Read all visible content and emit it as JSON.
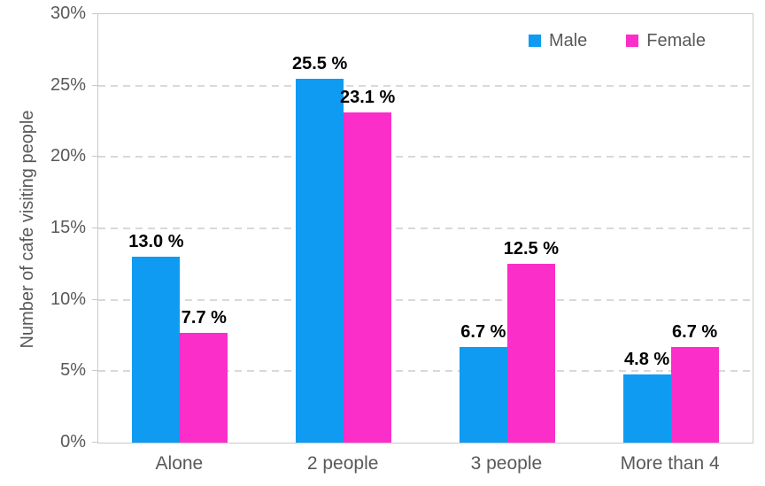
{
  "chart_data": {
    "type": "bar",
    "title": "",
    "xlabel": "",
    "ylabel": "Number of cafe visiting people",
    "ylim": [
      0,
      30
    ],
    "grid": "horizontal dashed lines at 5% intervals",
    "legend_position": "top-right inside plot area",
    "categories": [
      "Alone",
      "2 people",
      "3 people",
      "More than 4"
    ],
    "yticks": [
      {
        "value": 0,
        "label": "0%"
      },
      {
        "value": 5,
        "label": "5%"
      },
      {
        "value": 10,
        "label": "10%"
      },
      {
        "value": 15,
        "label": "15%"
      },
      {
        "value": 20,
        "label": "20%"
      },
      {
        "value": 25,
        "label": "25%"
      },
      {
        "value": 30,
        "label": "30%"
      }
    ],
    "series": [
      {
        "name": "Male",
        "color": "#0f9bf2",
        "values": [
          13.0,
          25.5,
          6.7,
          4.8
        ],
        "labels": [
          "13.0 %",
          "25.5 %",
          "6.7 %",
          "4.8 %"
        ]
      },
      {
        "name": "Female",
        "color": "#fb2ec9",
        "values": [
          7.7,
          23.1,
          12.5,
          6.7
        ],
        "labels": [
          "7.7 %",
          "23.1 %",
          "12.5 %",
          "6.7 %"
        ]
      }
    ],
    "style": {
      "text_color": "#595959",
      "data_label_color": "#000000",
      "gridline_color": "#d9d9d9",
      "axis_color": "#c9c9c9",
      "background": "#ffffff"
    }
  }
}
